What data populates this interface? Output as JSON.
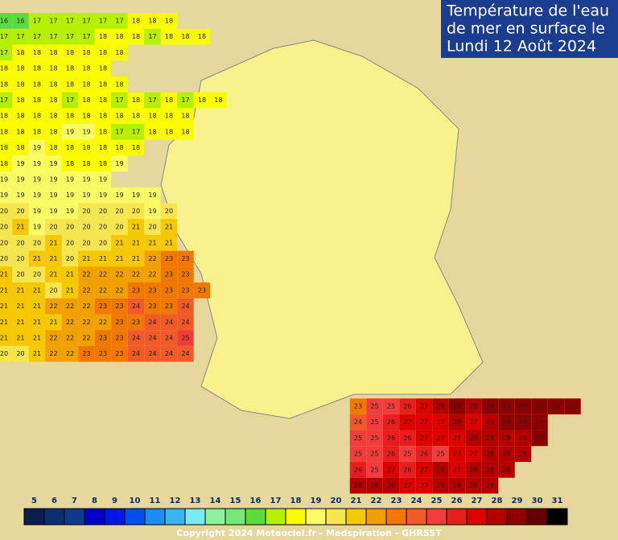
{
  "title": [
    "Température de l'eau",
    "de mer en surface le",
    "Lundi 12 Août 2024"
  ],
  "copyright": "Copyright 2024 Meteociel.fr - Medspiration - GHRSST",
  "scale": {
    "labels": [
      5,
      6,
      7,
      8,
      9,
      10,
      11,
      12,
      13,
      14,
      15,
      16,
      17,
      18,
      19,
      20,
      21,
      22,
      23,
      24,
      25,
      26,
      27,
      28,
      29,
      30,
      31
    ],
    "colors": [
      "#0a1f4d",
      "#0b2f6e",
      "#0b3a8f",
      "#0000c8",
      "#0018e6",
      "#0050f0",
      "#1e8cf0",
      "#3cb4f0",
      "#7de8f5",
      "#8cf0a0",
      "#78e678",
      "#5adc3c",
      "#b4f000",
      "#fafa00",
      "#fafa64",
      "#f5e650",
      "#f5c800",
      "#f0a000",
      "#f07800",
      "#f05a28",
      "#f03c3c",
      "#e61e1e",
      "#dc0000",
      "#b40000",
      "#8c0000",
      "#640000",
      "#000000"
    ]
  },
  "atlantic": [
    [
      16,
      16,
      17,
      17,
      17,
      17,
      17,
      17,
      18,
      18,
      18
    ],
    [
      17,
      17,
      17,
      17,
      17,
      17,
      18,
      18,
      18,
      17,
      18,
      18,
      18
    ],
    [
      17,
      18,
      18,
      18,
      18,
      18,
      18,
      18
    ],
    [
      18,
      18,
      18,
      18,
      18,
      18,
      18
    ],
    [
      18,
      18,
      18,
      18,
      18,
      18,
      18,
      18
    ],
    [
      17,
      18,
      18,
      18,
      17,
      18,
      18,
      17,
      18,
      17,
      18,
      17,
      18,
      18
    ],
    [
      18,
      18,
      18,
      18,
      18,
      18,
      18,
      18,
      18,
      18,
      18,
      18
    ],
    [
      18,
      18,
      18,
      18,
      19,
      19,
      18,
      17,
      17,
      18,
      18,
      18
    ],
    [
      18,
      18,
      19,
      18,
      18,
      18,
      18,
      18,
      18
    ],
    [
      18,
      19,
      19,
      19,
      18,
      18,
      18,
      19
    ],
    [
      19,
      19,
      19,
      19,
      19,
      19,
      19
    ],
    [
      19,
      19,
      19,
      19,
      19,
      19,
      19,
      19,
      19,
      19
    ],
    [
      20,
      20,
      19,
      19,
      19,
      20,
      20,
      20,
      20,
      19,
      20
    ],
    [
      20,
      21,
      19,
      20,
      20,
      20,
      20,
      20,
      21,
      20,
      21
    ],
    [
      20,
      20,
      20,
      21,
      20,
      20,
      20,
      21,
      21,
      21,
      21
    ],
    [
      20,
      20,
      21,
      21,
      20,
      21,
      21,
      21,
      21,
      22,
      23,
      23
    ],
    [
      21,
      20,
      20,
      21,
      21,
      22,
      22,
      22,
      22,
      22,
      23,
      23
    ],
    [
      21,
      21,
      21,
      20,
      21,
      22,
      22,
      22,
      23,
      23,
      23,
      23,
      23
    ],
    [
      21,
      21,
      21,
      22,
      22,
      22,
      23,
      23,
      24,
      23,
      23,
      24
    ],
    [
      21,
      21,
      21,
      21,
      22,
      22,
      22,
      23,
      23,
      24,
      24,
      24
    ],
    [
      21,
      21,
      21,
      22,
      22,
      22,
      23,
      23,
      24,
      24,
      24,
      25
    ],
    [
      20,
      20,
      21,
      22,
      22,
      23,
      23,
      23,
      24,
      24,
      24,
      24
    ]
  ],
  "mediterranean": [
    [
      23,
      25,
      25,
      26,
      27,
      28,
      29,
      28,
      29,
      29,
      29,
      29,
      29,
      29
    ],
    [
      24,
      25,
      26,
      27,
      27,
      27,
      28,
      27,
      28,
      29,
      29,
      29
    ],
    [
      25,
      25,
      26,
      26,
      27,
      27,
      27,
      28,
      28,
      28,
      28,
      29
    ],
    [
      25,
      25,
      26,
      25,
      26,
      25,
      27,
      27,
      28,
      28,
      28
    ],
    [
      26,
      25,
      27,
      26,
      27,
      28,
      27,
      28,
      28,
      28
    ],
    [
      28,
      28,
      28,
      27,
      27,
      28,
      28,
      28,
      28
    ]
  ]
}
